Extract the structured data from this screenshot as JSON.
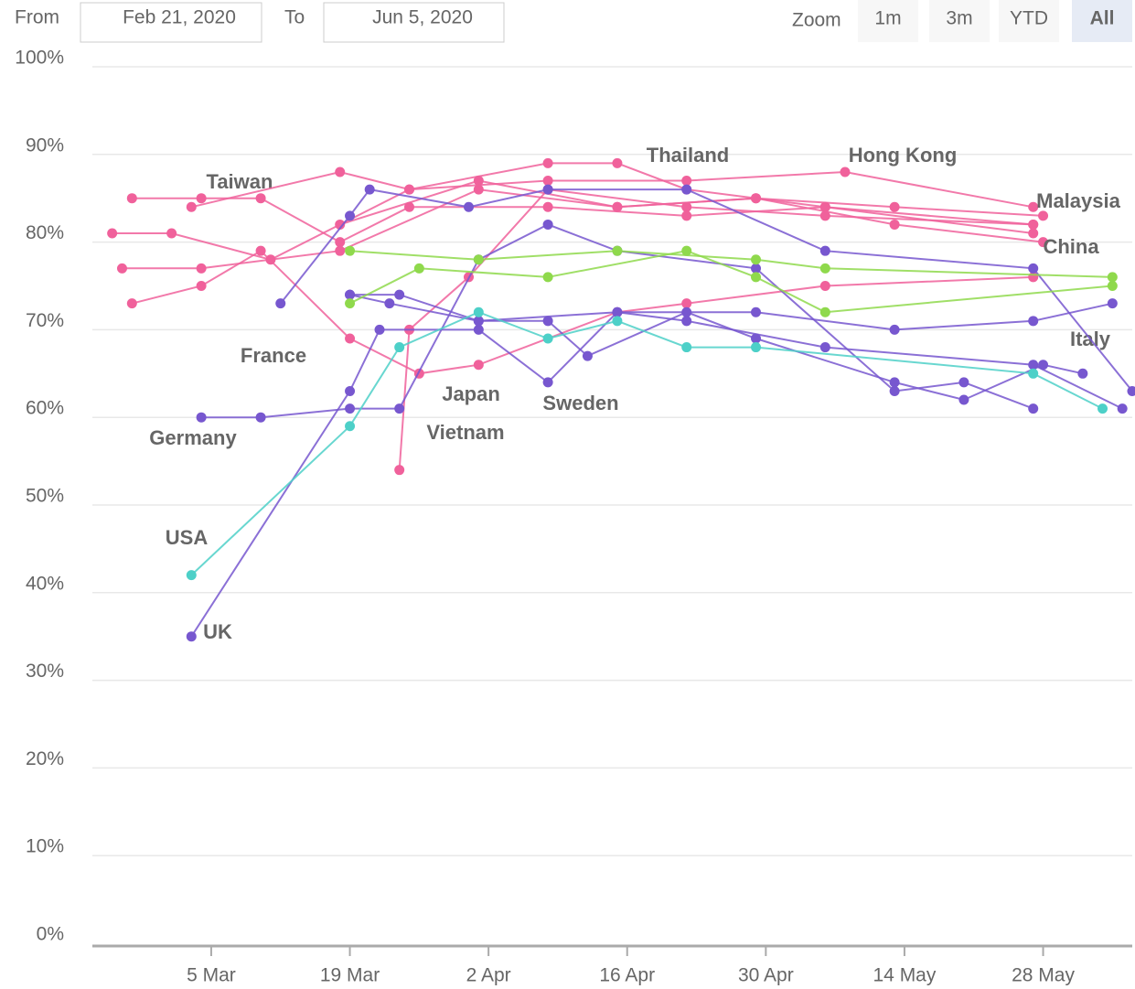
{
  "controls": {
    "from_label": "From",
    "from": "Feb 21, 2020",
    "to_label": "To",
    "to": "Jun 5, 2020",
    "zoom_label": "Zoom",
    "zoom": [
      "1m",
      "3m",
      "YTD",
      "All"
    ],
    "active_zoom": "All"
  },
  "chart_data": {
    "type": "line",
    "xlim": [
      "2020-02-22",
      "2020-06-06"
    ],
    "xticks": [
      {
        "value": "2020-03-05",
        "label": "5 Mar"
      },
      {
        "value": "2020-03-19",
        "label": "19 Mar"
      },
      {
        "value": "2020-04-02",
        "label": "2 Apr"
      },
      {
        "value": "2020-04-16",
        "label": "16 Apr"
      },
      {
        "value": "2020-04-30",
        "label": "30 Apr"
      },
      {
        "value": "2020-05-14",
        "label": "14 May"
      },
      {
        "value": "2020-05-28",
        "label": "28 May"
      }
    ],
    "ylim": [
      0,
      100
    ],
    "yticks": [
      {
        "value": 0,
        "label": "0%"
      },
      {
        "value": 10,
        "label": "10%"
      },
      {
        "value": 20,
        "label": "20%"
      },
      {
        "value": 30,
        "label": "30%"
      },
      {
        "value": 40,
        "label": "40%"
      },
      {
        "value": 50,
        "label": "50%"
      },
      {
        "value": 60,
        "label": "60%"
      },
      {
        "value": 70,
        "label": "70%"
      },
      {
        "value": 80,
        "label": "80%"
      },
      {
        "value": 90,
        "label": "90%"
      },
      {
        "value": 100,
        "label": "100%"
      }
    ],
    "grid": true,
    "series": [
      {
        "name": "Taiwan",
        "color": "#f0619b",
        "x": [
          "2020-02-26",
          "2020-03-04",
          "2020-03-10",
          "2020-03-18",
          "2020-03-25",
          "2020-04-08",
          "2020-04-22",
          "2020-05-06",
          "2020-05-27"
        ],
        "values": [
          85,
          85,
          85,
          80,
          84,
          84,
          83,
          84,
          82
        ]
      },
      {
        "name": "Thailand",
        "color": "#f0619b",
        "x": [
          "2020-03-03",
          "2020-03-18",
          "2020-03-25",
          "2020-04-08",
          "2020-04-15",
          "2020-04-22",
          "2020-05-06",
          "2020-05-27"
        ],
        "values": [
          84,
          88,
          86,
          89,
          89,
          86,
          84,
          81
        ]
      },
      {
        "name": "Hong Kong",
        "color": "#f0619b",
        "x": [
          "2020-02-24",
          "2020-03-01",
          "2020-03-11",
          "2020-03-25",
          "2020-04-08",
          "2020-04-22",
          "2020-05-08",
          "2020-05-27"
        ],
        "values": [
          81,
          81,
          78,
          86,
          87,
          87,
          88,
          84
        ]
      },
      {
        "name": "Malaysia",
        "color": "#f0619b",
        "x": [
          "2020-03-18",
          "2020-04-01",
          "2020-04-15",
          "2020-04-29",
          "2020-05-13",
          "2020-05-28"
        ],
        "values": [
          82,
          87,
          84,
          85,
          84,
          83
        ]
      },
      {
        "name": "China",
        "color": "#f0619b",
        "x": [
          "2020-02-25",
          "2020-03-04",
          "2020-03-18",
          "2020-04-01",
          "2020-04-15",
          "2020-04-29",
          "2020-05-13",
          "2020-05-28"
        ],
        "values": [
          77,
          77,
          79,
          86,
          84,
          85,
          82,
          80
        ]
      },
      {
        "name": "Japan",
        "color": "#f0619b",
        "x": [
          "2020-02-26",
          "2020-03-04",
          "2020-03-10",
          "2020-03-19",
          "2020-03-26",
          "2020-04-01",
          "2020-04-15",
          "2020-04-22",
          "2020-05-06",
          "2020-05-27"
        ],
        "values": [
          73,
          75,
          79,
          69,
          65,
          66,
          72,
          73,
          75,
          76
        ]
      },
      {
        "name": "Vietnam",
        "color": "#f0619b",
        "x": [
          "2020-03-24",
          "2020-03-25",
          "2020-03-31",
          "2020-04-08",
          "2020-04-22",
          "2020-05-06",
          "2020-05-27"
        ],
        "values": [
          54,
          70,
          76,
          86,
          84,
          83,
          82
        ]
      },
      {
        "name": "Italy",
        "color": "#7757cf",
        "x": [
          "2020-03-19",
          "2020-03-23",
          "2020-04-01",
          "2020-04-15",
          "2020-04-29",
          "2020-05-13",
          "2020-05-27",
          "2020-06-04"
        ],
        "values": [
          74,
          73,
          71,
          72,
          72,
          70,
          71,
          73
        ]
      },
      {
        "name": "France",
        "color": "#7757cf",
        "x": [
          "2020-03-12",
          "2020-03-19",
          "2020-03-21",
          "2020-03-31",
          "2020-04-08",
          "2020-04-22",
          "2020-05-06",
          "2020-05-27",
          "2020-06-06"
        ],
        "values": [
          73,
          83,
          86,
          84,
          86,
          86,
          79,
          77,
          63
        ]
      },
      {
        "name": "Germany",
        "color": "#7757cf",
        "x": [
          "2020-03-04",
          "2020-03-10",
          "2020-03-19",
          "2020-03-24",
          "2020-04-01",
          "2020-04-08",
          "2020-04-15",
          "2020-04-29",
          "2020-05-13",
          "2020-05-20",
          "2020-05-27"
        ],
        "values": [
          60,
          60,
          61,
          61,
          78,
          82,
          79,
          77,
          63,
          64,
          61
        ]
      },
      {
        "name": "UK",
        "color": "#7757cf",
        "x": [
          "2020-03-03",
          "2020-03-19",
          "2020-03-22",
          "2020-04-01",
          "2020-04-08",
          "2020-04-15",
          "2020-04-22",
          "2020-05-06",
          "2020-05-27",
          "2020-06-05"
        ],
        "values": [
          35,
          63,
          70,
          70,
          64,
          72,
          71,
          68,
          66,
          61
        ]
      },
      {
        "name": "Sweden",
        "color": "#7757cf",
        "x": [
          "2020-03-19",
          "2020-03-24",
          "2020-04-01",
          "2020-04-08",
          "2020-04-12",
          "2020-04-22",
          "2020-04-29",
          "2020-05-13",
          "2020-05-20",
          "2020-05-28",
          "2020-06-01"
        ],
        "values": [
          74,
          74,
          71,
          71,
          67,
          72,
          69,
          64,
          62,
          66,
          65
        ]
      },
      {
        "name": "USA",
        "color": "#4dd0c8",
        "x": [
          "2020-03-03",
          "2020-03-19",
          "2020-03-24",
          "2020-04-01",
          "2020-04-08",
          "2020-04-15",
          "2020-04-22",
          "2020-04-29",
          "2020-05-27",
          "2020-06-03"
        ],
        "values": [
          42,
          59,
          68,
          72,
          69,
          71,
          68,
          68,
          65,
          61
        ]
      },
      {
        "color": "#8fd94c",
        "x": [
          "2020-03-19",
          "2020-04-01",
          "2020-04-15",
          "2020-04-29",
          "2020-05-06",
          "2020-06-04"
        ],
        "values": [
          79,
          78,
          79,
          78,
          77,
          76
        ]
      },
      {
        "color": "#8fd94c",
        "x": [
          "2020-03-19",
          "2020-03-26",
          "2020-04-08",
          "2020-04-22",
          "2020-04-29",
          "2020-05-06",
          "2020-06-04"
        ],
        "values": [
          73,
          77,
          76,
          79,
          76,
          72,
          75
        ]
      }
    ]
  }
}
